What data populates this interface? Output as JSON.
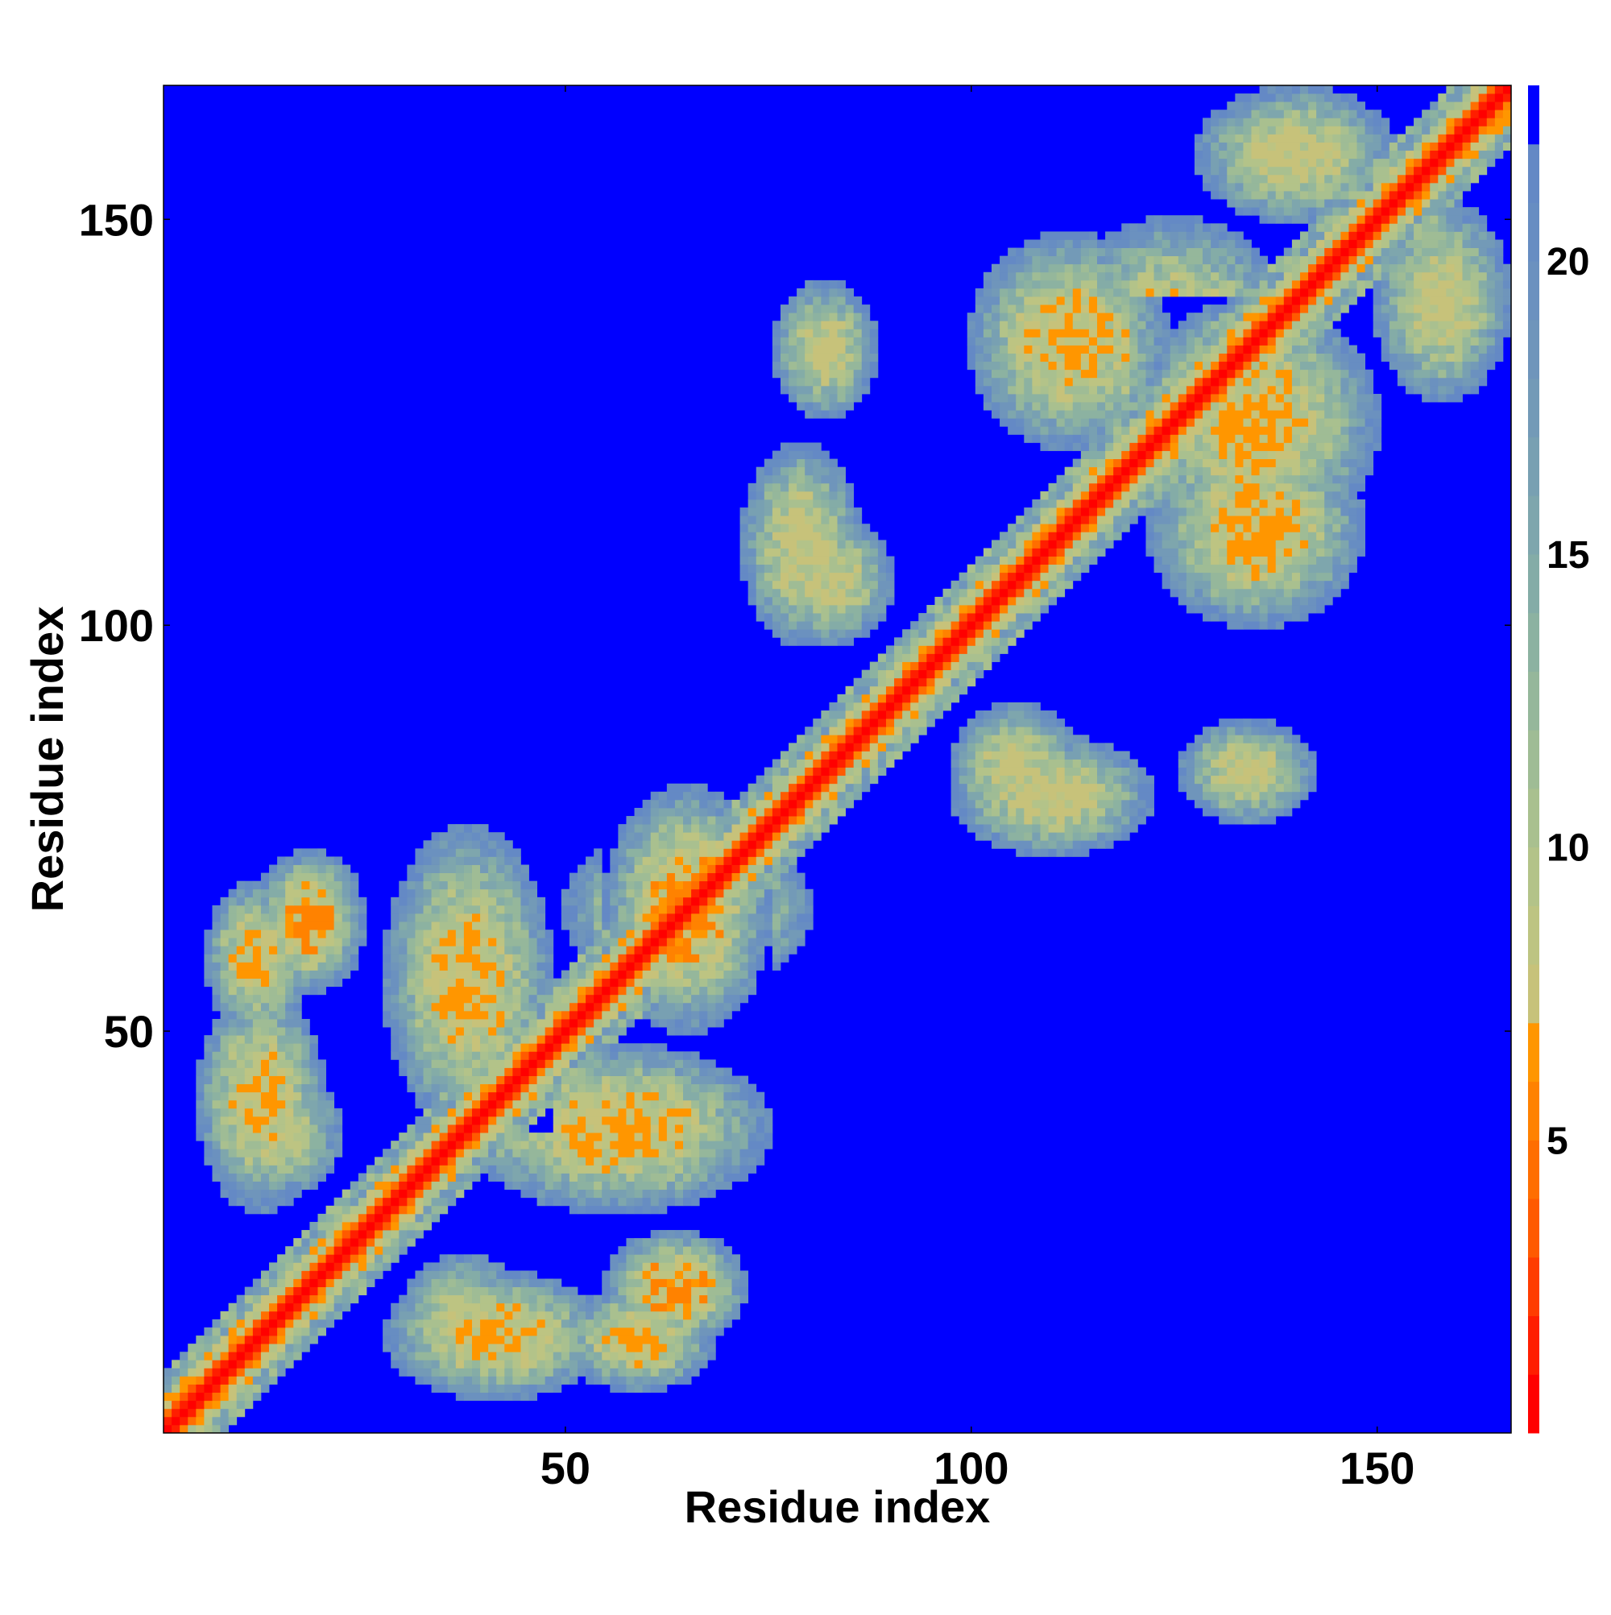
{
  "chart_data": {
    "type": "heatmap",
    "title": "",
    "xlabel": "Residue index",
    "ylabel": "Residue index",
    "n_residues": 166,
    "xlim": [
      0.5,
      166.5
    ],
    "ylim": [
      0.5,
      166.5
    ],
    "x_ticks": [
      50,
      100,
      150
    ],
    "y_ticks": [
      50,
      100,
      150
    ],
    "colorbar": {
      "range": [
        0,
        23
      ],
      "ticks": [
        5,
        10,
        15,
        20
      ],
      "levels": [
        {
          "from": 0,
          "to": 1,
          "color": "#ff0000"
        },
        {
          "from": 1,
          "to": 2,
          "color": "#ff1e00"
        },
        {
          "from": 2,
          "to": 3,
          "color": "#ff3c00"
        },
        {
          "from": 3,
          "to": 4,
          "color": "#ff5a00"
        },
        {
          "from": 4,
          "to": 5,
          "color": "#ff6e00"
        },
        {
          "from": 5,
          "to": 6,
          "color": "#ff8200"
        },
        {
          "from": 6,
          "to": 7,
          "color": "#ff9600"
        },
        {
          "from": 7,
          "to": 8,
          "color": "#c7c27a"
        },
        {
          "from": 8,
          "to": 9,
          "color": "#bdc482"
        },
        {
          "from": 9,
          "to": 10,
          "color": "#b3c389"
        },
        {
          "from": 10,
          "to": 11,
          "color": "#a9c08f"
        },
        {
          "from": 11,
          "to": 12,
          "color": "#9fbc95"
        },
        {
          "from": 12,
          "to": 13,
          "color": "#95b79b"
        },
        {
          "from": 13,
          "to": 14,
          "color": "#8cb2a1"
        },
        {
          "from": 14,
          "to": 15,
          "color": "#84aca7"
        },
        {
          "from": 15,
          "to": 16,
          "color": "#7ea6ad"
        },
        {
          "from": 16,
          "to": 17,
          "color": "#78a0b2"
        },
        {
          "from": 17,
          "to": 18,
          "color": "#739ab7"
        },
        {
          "from": 18,
          "to": 19,
          "color": "#6f95bb"
        },
        {
          "from": 19,
          "to": 20,
          "color": "#6b91bf"
        },
        {
          "from": 20,
          "to": 21,
          "color": "#678dc2"
        },
        {
          "from": 21,
          "to": 22,
          "color": "#6489c5"
        },
        {
          "from": 22,
          "to": 23,
          "color": "#0000ff"
        }
      ]
    },
    "max_distance_color": "#0000ff",
    "contact_regions": [
      {
        "i": [
          1,
          166
        ],
        "j": [
          1,
          166
        ],
        "kind": "diagonal",
        "value_on_diagonal": 0.5
      },
      {
        "i": [
          6,
          18
        ],
        "j": [
          50,
          68
        ],
        "kind": "off_diagonal",
        "min_value": 6
      },
      {
        "i": [
          8,
          22
        ],
        "j": [
          30,
          45
        ],
        "kind": "off_diagonal",
        "min_value": 8
      },
      {
        "i": [
          28,
          48
        ],
        "j": [
          38,
          75
        ],
        "kind": "off_diagonal",
        "min_value": 6
      },
      {
        "i": [
          28,
          55
        ],
        "j": [
          5,
          20
        ],
        "kind": "off_diagonal",
        "min_value": 6
      },
      {
        "i": [
          55,
          75
        ],
        "j": [
          50,
          80
        ],
        "kind": "off_diagonal",
        "min_value": 5
      },
      {
        "i": [
          55,
          72
        ],
        "j": [
          12,
          25
        ],
        "kind": "off_diagonal",
        "min_value": 5
      },
      {
        "i": [
          72,
          86
        ],
        "j": [
          98,
          122
        ],
        "kind": "off_diagonal",
        "min_value": 7
      },
      {
        "i": [
          76,
          88
        ],
        "j": [
          126,
          142
        ],
        "kind": "off_diagonal",
        "min_value": 7
      },
      {
        "i": [
          98,
          113
        ],
        "j": [
          75,
          90
        ],
        "kind": "off_diagonal",
        "min_value": 7
      },
      {
        "i": [
          120,
          150
        ],
        "j": [
          110,
          140
        ],
        "kind": "off_diagonal",
        "min_value": 6
      },
      {
        "i": [
          128,
          152
        ],
        "j": [
          150,
          166
        ],
        "kind": "off_diagonal",
        "min_value": 7
      },
      {
        "i": [
          100,
          124
        ],
        "j": [
          122,
          148
        ],
        "kind": "off_diagonal",
        "min_value": 6
      }
    ]
  }
}
